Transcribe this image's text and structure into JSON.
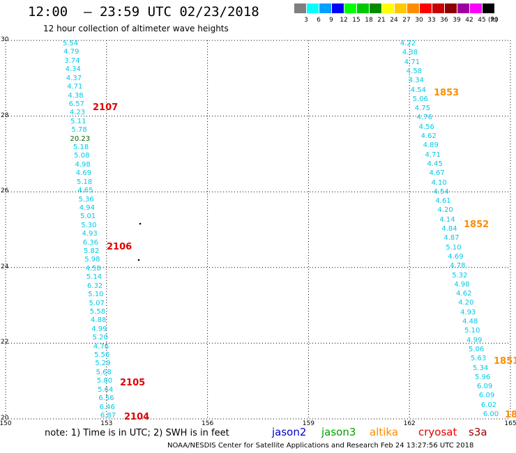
{
  "title": "12:00  – 23:59 UTC 02/23/2018",
  "subtitle": "12 hour collection of altimeter wave heights",
  "legend": {
    "unit": "(ft)",
    "bins": [
      {
        "label": "3",
        "color": "#7f7f7f"
      },
      {
        "label": "6",
        "color": "#00ffff"
      },
      {
        "label": "9",
        "color": "#00a0ff"
      },
      {
        "label": "12",
        "color": "#0000ff"
      },
      {
        "label": "15",
        "color": "#00ff00"
      },
      {
        "label": "18",
        "color": "#00c800"
      },
      {
        "label": "21",
        "color": "#008c00"
      },
      {
        "label": "24",
        "color": "#ffff00"
      },
      {
        "label": "27",
        "color": "#ffc800"
      },
      {
        "label": "30",
        "color": "#ff8c00"
      },
      {
        "label": "33",
        "color": "#ff0000"
      },
      {
        "label": "36",
        "color": "#c80000"
      },
      {
        "label": "39",
        "color": "#8c0000"
      },
      {
        "label": "42",
        "color": "#a000a0"
      },
      {
        "label": "45",
        "color": "#ff00ff"
      },
      {
        "label": "70",
        "color": "#000000"
      }
    ]
  },
  "axes": {
    "lat_ticks": [
      "30",
      "28",
      "26",
      "24",
      "22",
      "20"
    ],
    "lon_ticks": [
      "150",
      "153",
      "156",
      "159",
      "162",
      "165"
    ]
  },
  "tracks": [
    {
      "name": "west",
      "values": [
        "5.54",
        "4.79",
        "3.74",
        "4.34",
        "4.37",
        "4.71",
        "4.38",
        "6.57",
        "4.23",
        "5.11",
        "5.78",
        "20.23",
        "5.18",
        "5.08",
        "4.98",
        "4.69",
        "5.18",
        "4.65",
        "5.36",
        "4.94",
        "5.01",
        "5.30",
        "4.93",
        "6.36",
        "5.82",
        "5.98",
        "4.58",
        "5.14",
        "6.32",
        "5.10",
        "5.07",
        "5.58",
        "4.88",
        "4.99",
        "5.20",
        "4.76",
        "5.56",
        "5.29",
        "5.68",
        "5.80",
        "5.64",
        "6.56",
        "6.46",
        "6.87"
      ],
      "highlight": [
        "20.23"
      ]
    },
    {
      "name": "east",
      "values": [
        "4.22",
        "4.38",
        "4.71",
        "4.58",
        "4.34",
        "4.54",
        "5.06",
        "4.75",
        "4.76",
        "4.56",
        "4.62",
        "4.89",
        "4.71",
        "4.45",
        "4.67",
        "4.10",
        "4.54",
        "4.61",
        "4.20",
        "4.14",
        "4.84",
        "4.87",
        "5.10",
        "4.69",
        "4.78",
        "5.32",
        "4.98",
        "4.62",
        "4.20",
        "4.93",
        "4.48",
        "5.10",
        "4.99",
        "5.06",
        "5.63",
        "5.34",
        "5.96",
        "6.09",
        "6.09",
        "6.02",
        "6.00"
      ],
      "highlight": []
    }
  ],
  "passes": [
    {
      "label": "2107",
      "color": "red"
    },
    {
      "label": "2106",
      "color": "red"
    },
    {
      "label": "2105",
      "color": "red"
    },
    {
      "label": "2104",
      "color": "red"
    },
    {
      "label": "1853",
      "color": "orange"
    },
    {
      "label": "1852",
      "color": "orange"
    },
    {
      "label": "1851",
      "color": "orange"
    },
    {
      "label": "18",
      "color": "orange"
    }
  ],
  "note": "note:  1) Time is in UTC;  2) SWH is in feet",
  "satellites": [
    {
      "name": "jason2",
      "color": "#0000c8"
    },
    {
      "name": "jason3",
      "color": "#00a000"
    },
    {
      "name": "altika",
      "color": "#ff8c00"
    },
    {
      "name": "cryosat",
      "color": "#e00000"
    },
    {
      "name": "s3a",
      "color": "#a00000"
    }
  ],
  "credit": "NOAA/NESDIS Center for Satellite Applications and Research    Feb 24 13:27:56 UTC 2018"
}
